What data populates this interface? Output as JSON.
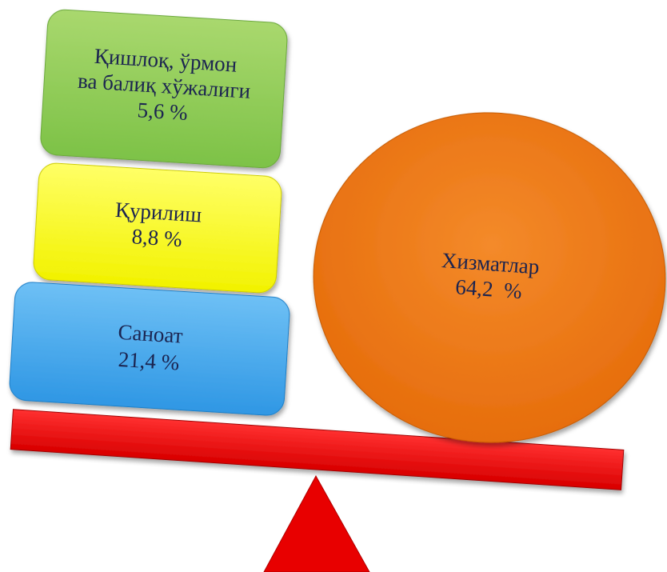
{
  "nodes": [
    {
      "lines": [
        "Қишлоқ, ўрмон",
        "ва балиқ хўжалиги",
        "5,6 %"
      ]
    },
    {
      "lines": [
        "Қурилиш",
        "8,8 %"
      ]
    },
    {
      "lines": [
        "Саноат",
        "21,4 %"
      ]
    },
    {
      "lines": [
        "Хизматлар",
        "64,2  %"
      ]
    }
  ]
}
